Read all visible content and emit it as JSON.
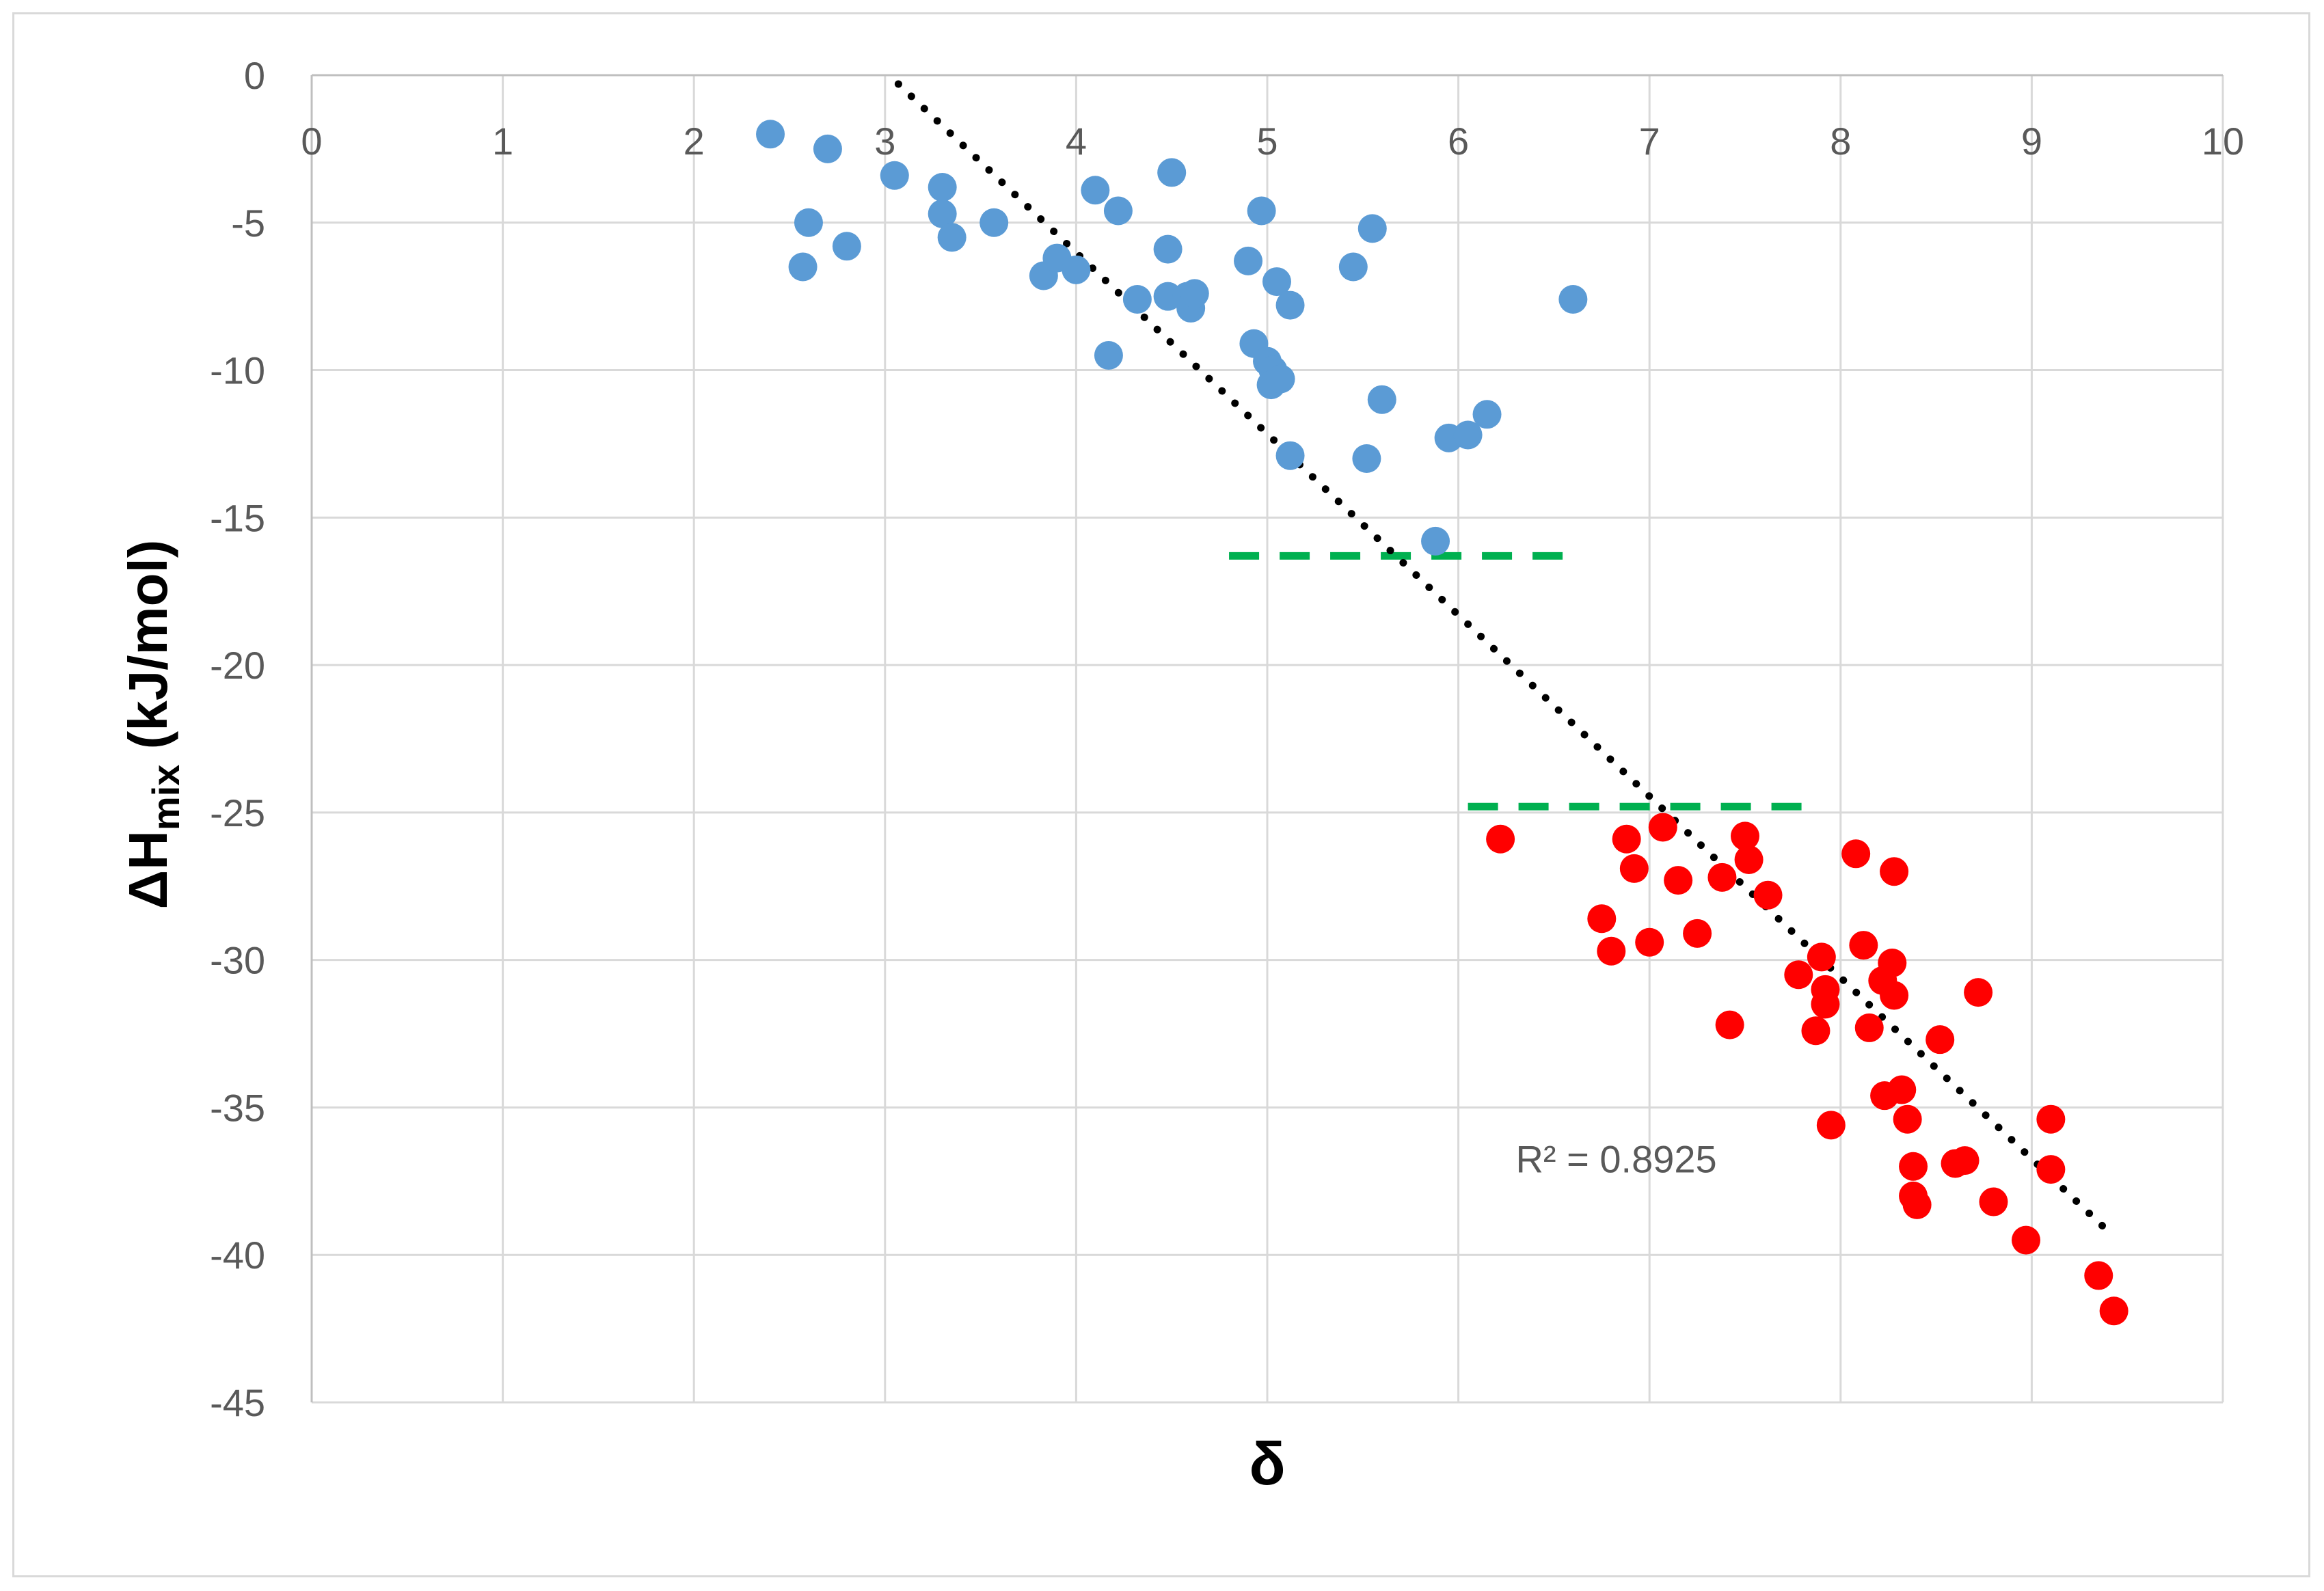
{
  "chart_data": {
    "type": "scatter",
    "title": "",
    "xlabel": "δ",
    "ylabel": {
      "prefix": "ΔH",
      "subscript": "mix",
      "suffix": " (kJ/mol)"
    },
    "xlim": [
      0,
      10
    ],
    "ylim": [
      -45,
      0
    ],
    "x_ticks": [
      0,
      1,
      2,
      3,
      4,
      5,
      6,
      7,
      8,
      9,
      10
    ],
    "y_ticks": [
      0,
      -5,
      -10,
      -15,
      -20,
      -25,
      -30,
      -35,
      -40,
      -45
    ],
    "x_tick_labels": [
      "0",
      "1",
      "2",
      "3",
      "4",
      "5",
      "6",
      "7",
      "8",
      "9",
      "10"
    ],
    "y_tick_labels": [
      "0",
      "-5",
      "-10",
      "-15",
      "-20",
      "-25",
      "-30",
      "-35",
      "-40",
      "-45"
    ],
    "grid": true,
    "legend": "none",
    "series": [
      {
        "color": "#5b9bd5",
        "points": [
          [
            2.4,
            -2.0
          ],
          [
            2.7,
            -2.5
          ],
          [
            2.6,
            -5.0
          ],
          [
            2.57,
            -6.5
          ],
          [
            2.8,
            -5.8
          ],
          [
            3.05,
            -3.4
          ],
          [
            3.3,
            -3.8
          ],
          [
            3.3,
            -4.7
          ],
          [
            3.35,
            -5.5
          ],
          [
            3.57,
            -5.0
          ],
          [
            3.83,
            -6.8
          ],
          [
            3.9,
            -6.2
          ],
          [
            4.0,
            -6.6
          ],
          [
            4.1,
            -3.9
          ],
          [
            4.22,
            -4.6
          ],
          [
            4.32,
            -7.6
          ],
          [
            4.17,
            -9.5
          ],
          [
            4.48,
            -5.9
          ],
          [
            4.5,
            -3.3
          ],
          [
            4.48,
            -7.5
          ],
          [
            4.58,
            -7.5
          ],
          [
            4.6,
            -7.9
          ],
          [
            4.62,
            -7.4
          ],
          [
            4.9,
            -6.3
          ],
          [
            4.97,
            -4.6
          ],
          [
            4.93,
            -9.1
          ],
          [
            5.0,
            -9.7
          ],
          [
            5.03,
            -10.0
          ],
          [
            5.02,
            -10.5
          ],
          [
            5.07,
            -10.3
          ],
          [
            5.05,
            -7.0
          ],
          [
            5.12,
            -7.8
          ],
          [
            5.12,
            -12.9
          ],
          [
            5.45,
            -6.5
          ],
          [
            5.55,
            -5.2
          ],
          [
            5.52,
            -13.0
          ],
          [
            5.6,
            -11.0
          ],
          [
            5.95,
            -12.3
          ],
          [
            6.05,
            -12.2
          ],
          [
            6.15,
            -11.5
          ],
          [
            5.88,
            -15.8
          ],
          [
            6.6,
            -7.6
          ]
        ]
      },
      {
        "color": "#ff0000",
        "points": [
          [
            6.22,
            -25.9
          ],
          [
            6.75,
            -28.6
          ],
          [
            6.8,
            -29.7
          ],
          [
            6.88,
            -25.9
          ],
          [
            6.92,
            -26.9
          ],
          [
            7.0,
            -29.4
          ],
          [
            7.07,
            -25.5
          ],
          [
            7.15,
            -27.3
          ],
          [
            7.25,
            -29.1
          ],
          [
            7.38,
            -27.2
          ],
          [
            7.42,
            -32.2
          ],
          [
            7.5,
            -25.8
          ],
          [
            7.52,
            -26.6
          ],
          [
            7.62,
            -27.8
          ],
          [
            7.78,
            -30.5
          ],
          [
            7.87,
            -32.4
          ],
          [
            7.9,
            -29.9
          ],
          [
            7.92,
            -31.0
          ],
          [
            7.92,
            -31.5
          ],
          [
            7.95,
            -35.6
          ],
          [
            8.08,
            -26.4
          ],
          [
            8.12,
            -29.5
          ],
          [
            8.15,
            -32.3
          ],
          [
            8.22,
            -30.7
          ],
          [
            8.23,
            -34.6
          ],
          [
            8.27,
            -30.1
          ],
          [
            8.28,
            -31.2
          ],
          [
            8.28,
            -27.0
          ],
          [
            8.32,
            -34.4
          ],
          [
            8.35,
            -35.4
          ],
          [
            8.38,
            -37.0
          ],
          [
            8.38,
            -38.0
          ],
          [
            8.4,
            -38.3
          ],
          [
            8.52,
            -32.7
          ],
          [
            8.6,
            -36.9
          ],
          [
            8.65,
            -36.8
          ],
          [
            8.72,
            -31.1
          ],
          [
            8.8,
            -38.2
          ],
          [
            8.97,
            -39.5
          ],
          [
            9.1,
            -35.4
          ],
          [
            9.1,
            -37.1
          ],
          [
            9.35,
            -40.7
          ],
          [
            9.43,
            -41.9
          ]
        ]
      }
    ],
    "trendline": {
      "style": "dotted",
      "color": "#000000",
      "points": [
        [
          3.07,
          -0.3
        ],
        [
          9.4,
          -39.2
        ]
      ]
    },
    "reference_lines": [
      {
        "style": "dashed",
        "color": "#00b050",
        "y": -16.3,
        "x_range": [
          4.8,
          6.6
        ]
      },
      {
        "style": "dashed",
        "color": "#00b050",
        "y": -24.8,
        "x_range": [
          6.05,
          7.88
        ]
      }
    ],
    "annotation": {
      "text": "R² = 0.8925",
      "x": 6.3,
      "y": -37.2
    }
  }
}
